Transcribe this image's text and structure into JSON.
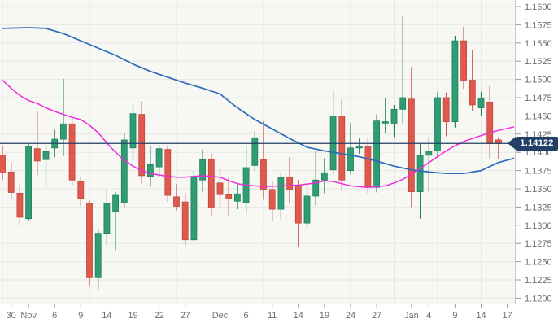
{
  "chart_data": {
    "type": "candlestick",
    "current_price": "1.14122",
    "legend": [],
    "grid": "on",
    "y_axis": {
      "side": "right",
      "min": 1.12,
      "max": 1.16,
      "tick_step": 0.0025,
      "ticks": [
        "1.1600",
        "1.1575",
        "1.1550",
        "1.1525",
        "1.1500",
        "1.1475",
        "1.1450",
        "1.1425",
        "1.1400",
        "1.1375",
        "1.1350",
        "1.1325",
        "1.1300",
        "1.1275",
        "1.1250",
        "1.1225",
        "1.1200"
      ]
    },
    "x_axis": {
      "ticks": [
        {
          "label": "30",
          "index": 1
        },
        {
          "label": "Nov",
          "index": 3
        },
        {
          "label": "6",
          "index": 6
        },
        {
          "label": "9",
          "index": 9
        },
        {
          "label": "14",
          "index": 12
        },
        {
          "label": "19",
          "index": 15
        },
        {
          "label": "22",
          "index": 18
        },
        {
          "label": "27",
          "index": 21
        },
        {
          "label": "Dec",
          "index": 25
        },
        {
          "label": "6",
          "index": 28
        },
        {
          "label": "11",
          "index": 31
        },
        {
          "label": "14",
          "index": 34
        },
        {
          "label": "19",
          "index": 37
        },
        {
          "label": "24",
          "index": 40
        },
        {
          "label": "27",
          "index": 43
        },
        {
          "label": "Jan",
          "index": 47
        },
        {
          "label": "4",
          "index": 49
        },
        {
          "label": "9",
          "index": 52
        },
        {
          "label": "14",
          "index": 55
        },
        {
          "label": "17",
          "index": 58
        }
      ],
      "week_indices": [
        0,
        5,
        10,
        15,
        20,
        25,
        30,
        35,
        40,
        45,
        50,
        55
      ]
    },
    "candles": [
      {
        "d": "29 Oct",
        "o": 1.1396,
        "h": 1.1408,
        "l": 1.1362,
        "c": 1.1372
      },
      {
        "d": "30 Oct",
        "o": 1.1373,
        "h": 1.1386,
        "l": 1.1336,
        "c": 1.1345
      },
      {
        "d": "31 Oct",
        "o": 1.1344,
        "h": 1.1358,
        "l": 1.13,
        "c": 1.1311
      },
      {
        "d": "1 Nov",
        "o": 1.1309,
        "h": 1.1412,
        "l": 1.1306,
        "c": 1.1408
      },
      {
        "d": "2 Nov",
        "o": 1.1405,
        "h": 1.1457,
        "l": 1.1369,
        "c": 1.1388
      },
      {
        "d": "5 Nov",
        "o": 1.139,
        "h": 1.1408,
        "l": 1.1353,
        "c": 1.1401
      },
      {
        "d": "6 Nov",
        "o": 1.1406,
        "h": 1.1431,
        "l": 1.1393,
        "c": 1.1418
      },
      {
        "d": "7 Nov",
        "o": 1.1418,
        "h": 1.1501,
        "l": 1.1395,
        "c": 1.1439
      },
      {
        "d": "8 Nov",
        "o": 1.1439,
        "h": 1.1447,
        "l": 1.1354,
        "c": 1.1362
      },
      {
        "d": "9 Nov",
        "o": 1.136,
        "h": 1.1367,
        "l": 1.1326,
        "c": 1.1337
      },
      {
        "d": "12 Nov",
        "o": 1.133,
        "h": 1.1334,
        "l": 1.1216,
        "c": 1.1228
      },
      {
        "d": "13 Nov",
        "o": 1.1228,
        "h": 1.1294,
        "l": 1.1212,
        "c": 1.1289
      },
      {
        "d": "14 Nov",
        "o": 1.1289,
        "h": 1.1349,
        "l": 1.1272,
        "c": 1.133
      },
      {
        "d": "15 Nov",
        "o": 1.1319,
        "h": 1.1346,
        "l": 1.1266,
        "c": 1.1341
      },
      {
        "d": "16 Nov",
        "o": 1.1331,
        "h": 1.1426,
        "l": 1.1325,
        "c": 1.1417
      },
      {
        "d": "19 Nov",
        "o": 1.1406,
        "h": 1.1465,
        "l": 1.1389,
        "c": 1.1453
      },
      {
        "d": "20 Nov",
        "o": 1.1452,
        "h": 1.147,
        "l": 1.1357,
        "c": 1.1368
      },
      {
        "d": "21 Nov",
        "o": 1.1367,
        "h": 1.1409,
        "l": 1.1353,
        "c": 1.1383
      },
      {
        "d": "22 Nov",
        "o": 1.138,
        "h": 1.141,
        "l": 1.1365,
        "c": 1.1405
      },
      {
        "d": "23 Nov",
        "o": 1.1404,
        "h": 1.141,
        "l": 1.1332,
        "c": 1.1341
      },
      {
        "d": "26 Nov",
        "o": 1.1339,
        "h": 1.1357,
        "l": 1.132,
        "c": 1.1326
      },
      {
        "d": "27 Nov",
        "o": 1.1332,
        "h": 1.1344,
        "l": 1.1272,
        "c": 1.128
      },
      {
        "d": "28 Nov",
        "o": 1.128,
        "h": 1.1375,
        "l": 1.1278,
        "c": 1.1367
      },
      {
        "d": "29 Nov",
        "o": 1.1362,
        "h": 1.1404,
        "l": 1.1345,
        "c": 1.139
      },
      {
        "d": "30 Nov",
        "o": 1.139,
        "h": 1.1398,
        "l": 1.1312,
        "c": 1.1324
      },
      {
        "d": "3 Dec",
        "o": 1.1358,
        "h": 1.138,
        "l": 1.1322,
        "c": 1.1342
      },
      {
        "d": "4 Dec",
        "o": 1.1342,
        "h": 1.1365,
        "l": 1.1313,
        "c": 1.1336
      },
      {
        "d": "5 Dec",
        "o": 1.1333,
        "h": 1.1357,
        "l": 1.1322,
        "c": 1.1343
      },
      {
        "d": "6 Dec",
        "o": 1.1331,
        "h": 1.141,
        "l": 1.1315,
        "c": 1.1379
      },
      {
        "d": "7 Dec",
        "o": 1.1382,
        "h": 1.1429,
        "l": 1.1375,
        "c": 1.142
      },
      {
        "d": "10 Dec",
        "o": 1.139,
        "h": 1.1443,
        "l": 1.1335,
        "c": 1.1349
      },
      {
        "d": "11 Dec",
        "o": 1.1349,
        "h": 1.136,
        "l": 1.1305,
        "c": 1.1322
      },
      {
        "d": "12 Dec",
        "o": 1.1322,
        "h": 1.1372,
        "l": 1.1308,
        "c": 1.1366
      },
      {
        "d": "13 Dec",
        "o": 1.1366,
        "h": 1.1393,
        "l": 1.133,
        "c": 1.1349
      },
      {
        "d": "14 Dec",
        "o": 1.1355,
        "h": 1.1362,
        "l": 1.127,
        "c": 1.1303
      },
      {
        "d": "17 Dec",
        "o": 1.1303,
        "h": 1.1358,
        "l": 1.1297,
        "c": 1.134
      },
      {
        "d": "18 Dec",
        "o": 1.134,
        "h": 1.1402,
        "l": 1.1327,
        "c": 1.1362
      },
      {
        "d": "19 Dec",
        "o": 1.1362,
        "h": 1.1392,
        "l": 1.1344,
        "c": 1.1372
      },
      {
        "d": "20 Dec",
        "o": 1.1376,
        "h": 1.1486,
        "l": 1.137,
        "c": 1.145
      },
      {
        "d": "21 Dec",
        "o": 1.145,
        "h": 1.1473,
        "l": 1.1348,
        "c": 1.1362
      },
      {
        "d": "24 Dec",
        "o": 1.1375,
        "h": 1.144,
        "l": 1.137,
        "c": 1.1406
      },
      {
        "d": "25 Dec",
        "o": 1.1406,
        "h": 1.1419,
        "l": 1.1398,
        "c": 1.1408
      },
      {
        "d": "26 Dec",
        "o": 1.1408,
        "h": 1.142,
        "l": 1.1343,
        "c": 1.1352
      },
      {
        "d": "27 Dec",
        "o": 1.1352,
        "h": 1.1452,
        "l": 1.1345,
        "c": 1.1443
      },
      {
        "d": "28 Dec",
        "o": 1.144,
        "h": 1.1475,
        "l": 1.1426,
        "c": 1.1442
      },
      {
        "d": "31 Dec",
        "o": 1.144,
        "h": 1.1465,
        "l": 1.1421,
        "c": 1.1459
      },
      {
        "d": "1 Jan",
        "o": 1.1459,
        "h": 1.1587,
        "l": 1.144,
        "c": 1.1475
      },
      {
        "d": "2 Jan",
        "o": 1.1473,
        "h": 1.1517,
        "l": 1.1325,
        "c": 1.1346
      },
      {
        "d": "3 Jan",
        "o": 1.1346,
        "h": 1.1412,
        "l": 1.1309,
        "c": 1.1396
      },
      {
        "d": "4 Jan",
        "o": 1.1396,
        "h": 1.142,
        "l": 1.1345,
        "c": 1.1402
      },
      {
        "d": "7 Jan",
        "o": 1.1402,
        "h": 1.1483,
        "l": 1.1394,
        "c": 1.1475
      },
      {
        "d": "8 Jan",
        "o": 1.1475,
        "h": 1.1482,
        "l": 1.1422,
        "c": 1.1442
      },
      {
        "d": "9 Jan",
        "o": 1.1442,
        "h": 1.156,
        "l": 1.1434,
        "c": 1.1553
      },
      {
        "d": "10 Jan",
        "o": 1.1553,
        "h": 1.1572,
        "l": 1.1487,
        "c": 1.1499
      },
      {
        "d": "11 Jan",
        "o": 1.1499,
        "h": 1.1541,
        "l": 1.1457,
        "c": 1.1465
      },
      {
        "d": "14 Jan",
        "o": 1.1461,
        "h": 1.1483,
        "l": 1.145,
        "c": 1.1474
      },
      {
        "d": "15 Jan",
        "o": 1.1469,
        "h": 1.1491,
        "l": 1.1392,
        "c": 1.1412
      },
      {
        "d": "16 Jan",
        "o": 1.1417,
        "h": 1.1421,
        "l": 1.1391,
        "c": 1.1412
      }
    ],
    "ma_blue": [
      [
        0,
        1.157
      ],
      [
        3,
        1.1571
      ],
      [
        5,
        1.157
      ],
      [
        7,
        1.1563
      ],
      [
        9,
        1.1553
      ],
      [
        11,
        1.1543
      ],
      [
        13,
        1.1533
      ],
      [
        15,
        1.1521
      ],
      [
        17,
        1.1511
      ],
      [
        19,
        1.1503
      ],
      [
        21,
        1.1495
      ],
      [
        23,
        1.1488
      ],
      [
        25,
        1.148
      ],
      [
        27,
        1.1461
      ],
      [
        29,
        1.1445
      ],
      [
        31,
        1.1432
      ],
      [
        33,
        1.1419
      ],
      [
        35,
        1.1407
      ],
      [
        37,
        1.1402
      ],
      [
        39,
        1.1398
      ],
      [
        41,
        1.1394
      ],
      [
        43,
        1.1388
      ],
      [
        45,
        1.1381
      ],
      [
        47,
        1.1376
      ],
      [
        49,
        1.1373
      ],
      [
        51,
        1.1371
      ],
      [
        53,
        1.1371
      ],
      [
        55,
        1.1375
      ],
      [
        57,
        1.1386
      ],
      [
        58.8,
        1.1392
      ]
    ],
    "ma_magenta": [
      [
        0,
        1.1499
      ],
      [
        1,
        1.1488
      ],
      [
        2,
        1.1478
      ],
      [
        3,
        1.1471
      ],
      [
        4,
        1.1467
      ],
      [
        5,
        1.1461
      ],
      [
        6,
        1.1456
      ],
      [
        7,
        1.1452
      ],
      [
        8,
        1.1448
      ],
      [
        9,
        1.1445
      ],
      [
        10,
        1.1437
      ],
      [
        11,
        1.1427
      ],
      [
        12,
        1.1413
      ],
      [
        13,
        1.14
      ],
      [
        14,
        1.1389
      ],
      [
        15,
        1.1381
      ],
      [
        16,
        1.1375
      ],
      [
        17,
        1.1371
      ],
      [
        18,
        1.1369
      ],
      [
        19,
        1.1367
      ],
      [
        20,
        1.1366
      ],
      [
        21,
        1.1366
      ],
      [
        22,
        1.1367
      ],
      [
        23,
        1.1368
      ],
      [
        24,
        1.1367
      ],
      [
        25,
        1.1366
      ],
      [
        26,
        1.1361
      ],
      [
        27,
        1.1357
      ],
      [
        28,
        1.1355
      ],
      [
        30,
        1.1353
      ],
      [
        32,
        1.1354
      ],
      [
        34,
        1.1355
      ],
      [
        36,
        1.1358
      ],
      [
        37,
        1.1361
      ],
      [
        38,
        1.136
      ],
      [
        39,
        1.1357
      ],
      [
        40,
        1.1354
      ],
      [
        42,
        1.1352
      ],
      [
        44,
        1.1354
      ],
      [
        45,
        1.1358
      ],
      [
        46,
        1.1363
      ],
      [
        47,
        1.137
      ],
      [
        48,
        1.1378
      ],
      [
        49,
        1.1386
      ],
      [
        50,
        1.1394
      ],
      [
        51,
        1.1402
      ],
      [
        52,
        1.1409
      ],
      [
        53,
        1.1415
      ],
      [
        54,
        1.1419
      ],
      [
        55,
        1.1423
      ],
      [
        56,
        1.1427
      ],
      [
        57,
        1.143
      ],
      [
        58.8,
        1.1435
      ]
    ],
    "colors": {
      "up": "#2f9c74",
      "up_dark": "#20815d",
      "down": "#df5a4d",
      "down_dark": "#c1473c",
      "ma_blue": "#2b6cb8",
      "ma_magenta": "#ef2bdc",
      "price_line": "#224066",
      "label_bg": "#224066",
      "label_text": "#ffffff",
      "grid": "#e7e7e3",
      "axis_line": "#c9c9c6",
      "tick_mark": "#9a9a97",
      "axis_text": "#6e6e6e",
      "plot_bg": "#f7f7f4"
    }
  }
}
